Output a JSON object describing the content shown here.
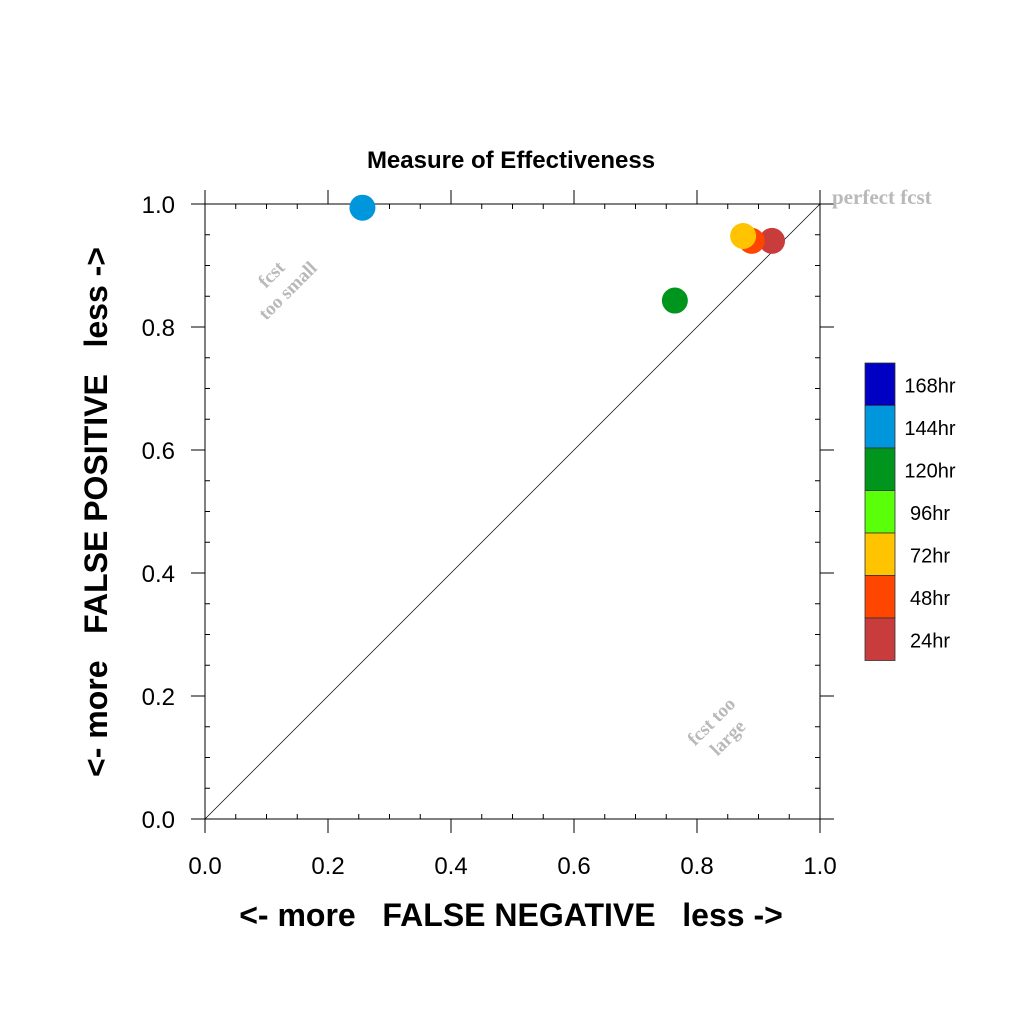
{
  "chart_data": {
    "type": "scatter",
    "title": "Measure of Effectiveness",
    "xlabel": "<- more   FALSE NEGATIVE   less ->",
    "ylabel": "<- more   FALSE POSITIVE   less ->",
    "xlim": [
      0.0,
      1.0
    ],
    "ylim": [
      0.0,
      1.0
    ],
    "x_ticks": [
      "0.0",
      "0.2",
      "0.4",
      "0.6",
      "0.8",
      "1.0"
    ],
    "y_ticks": [
      "0.0",
      "0.2",
      "0.4",
      "0.6",
      "0.8",
      "1.0"
    ],
    "grid": false,
    "diagonal": true,
    "annotations": {
      "perfect": "perfect fcst",
      "too_small_1": "fcst",
      "too_small_2": "too small",
      "too_large_1": "fcst too",
      "too_large_2": "large"
    },
    "legend_position": "right",
    "legend": [
      {
        "name": "168hr",
        "color": "#0000c4"
      },
      {
        "name": "144hr",
        "color": "#0096dc"
      },
      {
        "name": "120hr",
        "color": "#00961e"
      },
      {
        "name": "96hr",
        "color": "#5aff0a"
      },
      {
        "name": "72hr",
        "color": "#ffc300"
      },
      {
        "name": "48hr",
        "color": "#ff4600"
      },
      {
        "name": "24hr",
        "color": "#c83c3c"
      }
    ],
    "series": [
      {
        "name": "144hr",
        "color": "#0096dc",
        "x": [
          0.256
        ],
        "y": [
          0.994
        ]
      },
      {
        "name": "120hr",
        "color": "#00961e",
        "x": [
          0.764
        ],
        "y": [
          0.843
        ]
      },
      {
        "name": "24hr",
        "color": "#c83c3c",
        "x": [
          0.922
        ],
        "y": [
          0.94
        ]
      },
      {
        "name": "48hr",
        "color": "#ff4600",
        "x": [
          0.889
        ],
        "y": [
          0.94
        ]
      },
      {
        "name": "72hr",
        "color": "#ffc300",
        "x": [
          0.875
        ],
        "y": [
          0.948
        ]
      }
    ]
  }
}
